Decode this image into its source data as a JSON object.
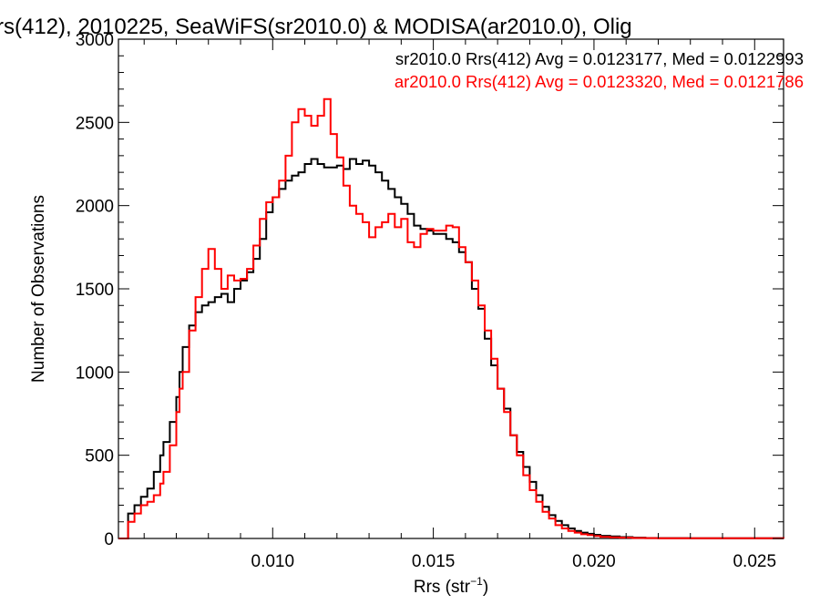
{
  "chart_data": {
    "type": "line",
    "step": true,
    "title": "rs(412), 2010225, SeaWiFS(sr2010.0) & MODISA(ar2010.0), Olig",
    "xlabel": "Rrs (str",
    "xlabel_sup": "−1",
    "xlabel_end": ")",
    "ylabel": "Number of Observations",
    "xlim": [
      0.0052,
      0.0259
    ],
    "ylim": [
      0,
      3000
    ],
    "x_ticks": [
      0.01,
      0.015,
      0.02,
      0.025
    ],
    "x_tick_labels": [
      "0.010",
      "0.015",
      "0.020",
      "0.025"
    ],
    "y_ticks": [
      0,
      500,
      1000,
      1500,
      2000,
      2500,
      3000
    ],
    "y_tick_labels": [
      "0",
      "500",
      "1000",
      "1500",
      "2000",
      "2500",
      "3000"
    ],
    "grid": false,
    "legend_position": "top-right",
    "series": [
      {
        "name": "sr2010.0",
        "legend": "sr2010.0 Rrs(412) Avg = 0.0123177, Med = 0.0122993",
        "color": "#000000",
        "points": [
          [
            0.0052,
            0
          ],
          [
            0.0055,
            150
          ],
          [
            0.0057,
            200
          ],
          [
            0.0059,
            250
          ],
          [
            0.0061,
            300
          ],
          [
            0.0063,
            400
          ],
          [
            0.0065,
            500
          ],
          [
            0.0066,
            580
          ],
          [
            0.0068,
            700
          ],
          [
            0.007,
            850
          ],
          [
            0.0071,
            1000
          ],
          [
            0.0072,
            1150
          ],
          [
            0.0074,
            1280
          ],
          [
            0.0076,
            1360
          ],
          [
            0.0078,
            1400
          ],
          [
            0.008,
            1420
          ],
          [
            0.0082,
            1450
          ],
          [
            0.0084,
            1470
          ],
          [
            0.0086,
            1420
          ],
          [
            0.0088,
            1500
          ],
          [
            0.009,
            1550
          ],
          [
            0.0092,
            1600
          ],
          [
            0.0094,
            1680
          ],
          [
            0.0096,
            1800
          ],
          [
            0.0098,
            1960
          ],
          [
            0.01,
            2050
          ],
          [
            0.0102,
            2100
          ],
          [
            0.0104,
            2150
          ],
          [
            0.0106,
            2180
          ],
          [
            0.0108,
            2200
          ],
          [
            0.011,
            2250
          ],
          [
            0.0112,
            2280
          ],
          [
            0.0114,
            2250
          ],
          [
            0.0116,
            2230
          ],
          [
            0.0118,
            2230
          ],
          [
            0.012,
            2240
          ],
          [
            0.0122,
            2220
          ],
          [
            0.0124,
            2280
          ],
          [
            0.0126,
            2250
          ],
          [
            0.0128,
            2270
          ],
          [
            0.013,
            2240
          ],
          [
            0.0132,
            2200
          ],
          [
            0.0134,
            2150
          ],
          [
            0.0136,
            2100
          ],
          [
            0.0138,
            2050
          ],
          [
            0.014,
            2010
          ],
          [
            0.0142,
            1950
          ],
          [
            0.0144,
            1880
          ],
          [
            0.0146,
            1860
          ],
          [
            0.0148,
            1850
          ],
          [
            0.015,
            1830
          ],
          [
            0.0152,
            1830
          ],
          [
            0.0154,
            1800
          ],
          [
            0.0156,
            1780
          ],
          [
            0.0158,
            1720
          ],
          [
            0.016,
            1660
          ],
          [
            0.0162,
            1500
          ],
          [
            0.0164,
            1380
          ],
          [
            0.0166,
            1200
          ],
          [
            0.0168,
            1040
          ],
          [
            0.017,
            900
          ],
          [
            0.0172,
            780
          ],
          [
            0.0174,
            620
          ],
          [
            0.0176,
            520
          ],
          [
            0.0178,
            430
          ],
          [
            0.018,
            340
          ],
          [
            0.0182,
            260
          ],
          [
            0.0184,
            190
          ],
          [
            0.0186,
            140
          ],
          [
            0.0188,
            105
          ],
          [
            0.019,
            80
          ],
          [
            0.0192,
            60
          ],
          [
            0.0194,
            45
          ],
          [
            0.0196,
            35
          ],
          [
            0.0198,
            28
          ],
          [
            0.02,
            22
          ],
          [
            0.0202,
            16
          ],
          [
            0.0205,
            12
          ],
          [
            0.0208,
            8
          ],
          [
            0.0212,
            5
          ],
          [
            0.0216,
            3
          ],
          [
            0.022,
            2
          ],
          [
            0.023,
            1
          ],
          [
            0.0259,
            0
          ]
        ]
      },
      {
        "name": "ar2010.0",
        "legend": "ar2010.0 Rrs(412) Avg = 0.0123320, Med = 0.0121786",
        "color": "#ff0000",
        "points": [
          [
            0.0052,
            0
          ],
          [
            0.0055,
            100
          ],
          [
            0.0057,
            150
          ],
          [
            0.0059,
            200
          ],
          [
            0.0061,
            220
          ],
          [
            0.0063,
            260
          ],
          [
            0.0065,
            330
          ],
          [
            0.0066,
            400
          ],
          [
            0.0068,
            560
          ],
          [
            0.007,
            760
          ],
          [
            0.0071,
            900
          ],
          [
            0.0072,
            1000
          ],
          [
            0.0074,
            1250
          ],
          [
            0.0076,
            1450
          ],
          [
            0.0078,
            1620
          ],
          [
            0.008,
            1740
          ],
          [
            0.0082,
            1620
          ],
          [
            0.0084,
            1500
          ],
          [
            0.0086,
            1580
          ],
          [
            0.0088,
            1550
          ],
          [
            0.009,
            1560
          ],
          [
            0.0092,
            1620
          ],
          [
            0.0094,
            1760
          ],
          [
            0.0096,
            1920
          ],
          [
            0.0098,
            2020
          ],
          [
            0.01,
            2050
          ],
          [
            0.0102,
            2150
          ],
          [
            0.0104,
            2300
          ],
          [
            0.0106,
            2500
          ],
          [
            0.0108,
            2580
          ],
          [
            0.011,
            2540
          ],
          [
            0.0112,
            2480
          ],
          [
            0.0114,
            2540
          ],
          [
            0.0116,
            2640
          ],
          [
            0.0118,
            2430
          ],
          [
            0.012,
            2290
          ],
          [
            0.0122,
            2120
          ],
          [
            0.0124,
            2000
          ],
          [
            0.0126,
            1950
          ],
          [
            0.0128,
            1900
          ],
          [
            0.013,
            1810
          ],
          [
            0.0132,
            1870
          ],
          [
            0.0134,
            1900
          ],
          [
            0.0136,
            1950
          ],
          [
            0.0138,
            1870
          ],
          [
            0.014,
            1920
          ],
          [
            0.0142,
            1780
          ],
          [
            0.0144,
            1750
          ],
          [
            0.0146,
            1830
          ],
          [
            0.0148,
            1860
          ],
          [
            0.015,
            1850
          ],
          [
            0.0152,
            1850
          ],
          [
            0.0154,
            1880
          ],
          [
            0.0156,
            1870
          ],
          [
            0.0158,
            1750
          ],
          [
            0.016,
            1660
          ],
          [
            0.0162,
            1550
          ],
          [
            0.0164,
            1400
          ],
          [
            0.0166,
            1250
          ],
          [
            0.0168,
            1080
          ],
          [
            0.017,
            900
          ],
          [
            0.0172,
            760
          ],
          [
            0.0174,
            620
          ],
          [
            0.0176,
            500
          ],
          [
            0.0178,
            380
          ],
          [
            0.018,
            290
          ],
          [
            0.0182,
            220
          ],
          [
            0.0184,
            160
          ],
          [
            0.0186,
            120
          ],
          [
            0.0188,
            80
          ],
          [
            0.019,
            60
          ],
          [
            0.0192,
            45
          ],
          [
            0.0194,
            35
          ],
          [
            0.0196,
            25
          ],
          [
            0.0198,
            20
          ],
          [
            0.02,
            15
          ],
          [
            0.0202,
            10
          ],
          [
            0.0205,
            7
          ],
          [
            0.0208,
            5
          ],
          [
            0.0212,
            3
          ],
          [
            0.0216,
            2
          ],
          [
            0.022,
            1
          ],
          [
            0.0259,
            0
          ]
        ]
      }
    ]
  }
}
